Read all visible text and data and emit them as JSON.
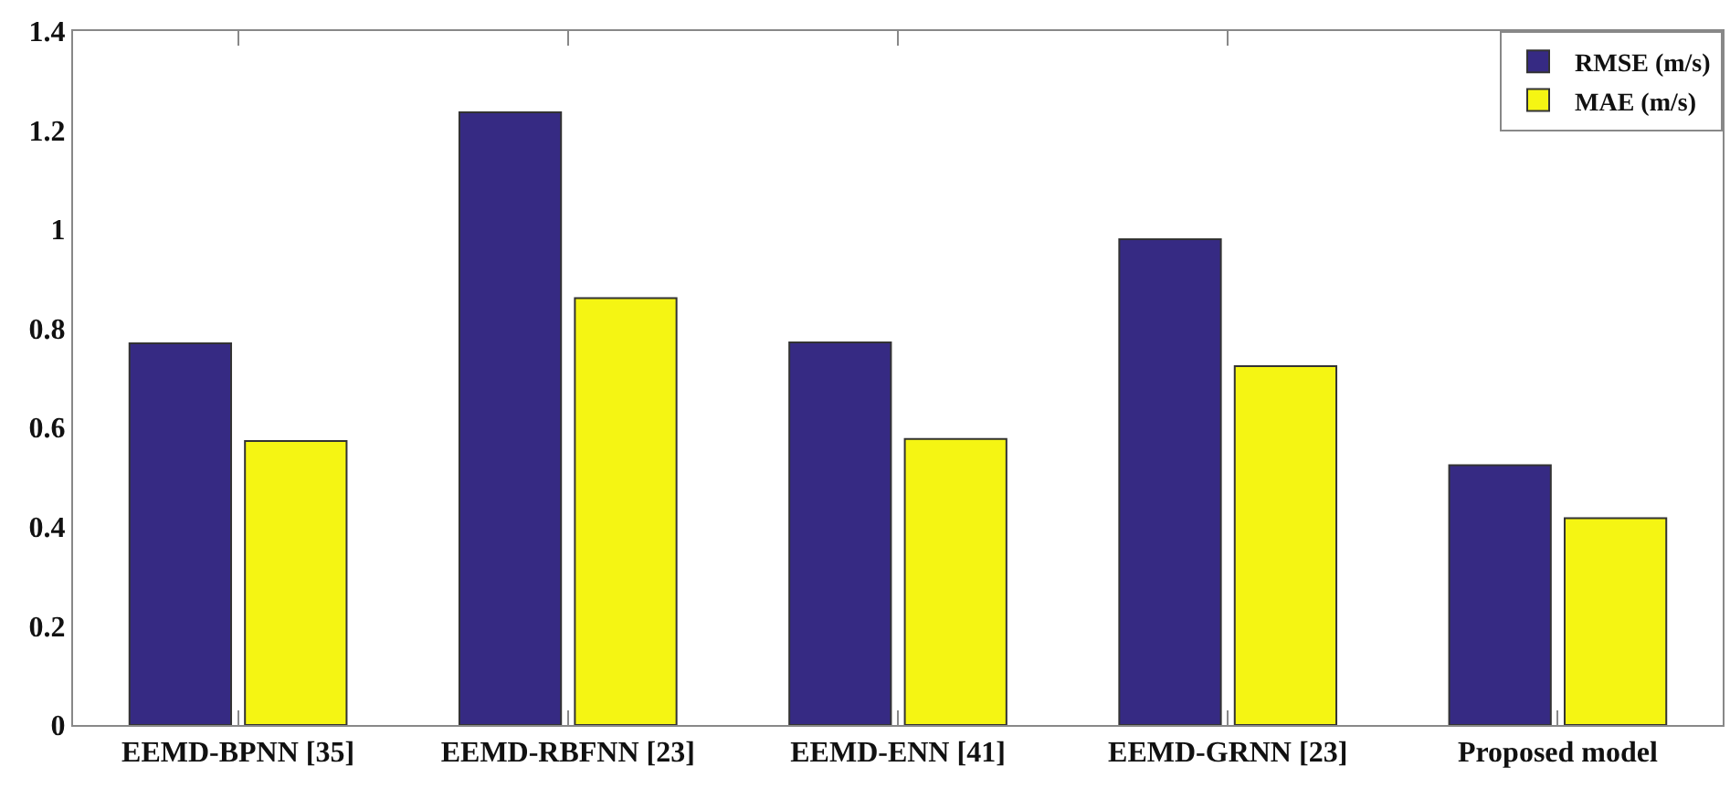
{
  "chart_data": {
    "type": "bar",
    "categories": [
      "EEMD-BPNN [35]",
      "EEMD-RBFNN [23]",
      "EEMD-ENN [41]",
      "EEMD-GRNN [23]",
      "Proposed model"
    ],
    "series": [
      {
        "name": "RMSE (m/s)",
        "color": "#362a83",
        "values": [
          0.77,
          1.236,
          0.772,
          0.98,
          0.524
        ]
      },
      {
        "name": "MAE (m/s)",
        "color": "#f5f513",
        "values": [
          0.573,
          0.861,
          0.577,
          0.724,
          0.417
        ]
      }
    ],
    "ylim": [
      0,
      1.4
    ],
    "yticks": [
      0,
      0.2,
      0.4,
      0.6,
      0.8,
      1,
      1.2,
      1.4
    ],
    "grid": false,
    "legend": "top right"
  }
}
